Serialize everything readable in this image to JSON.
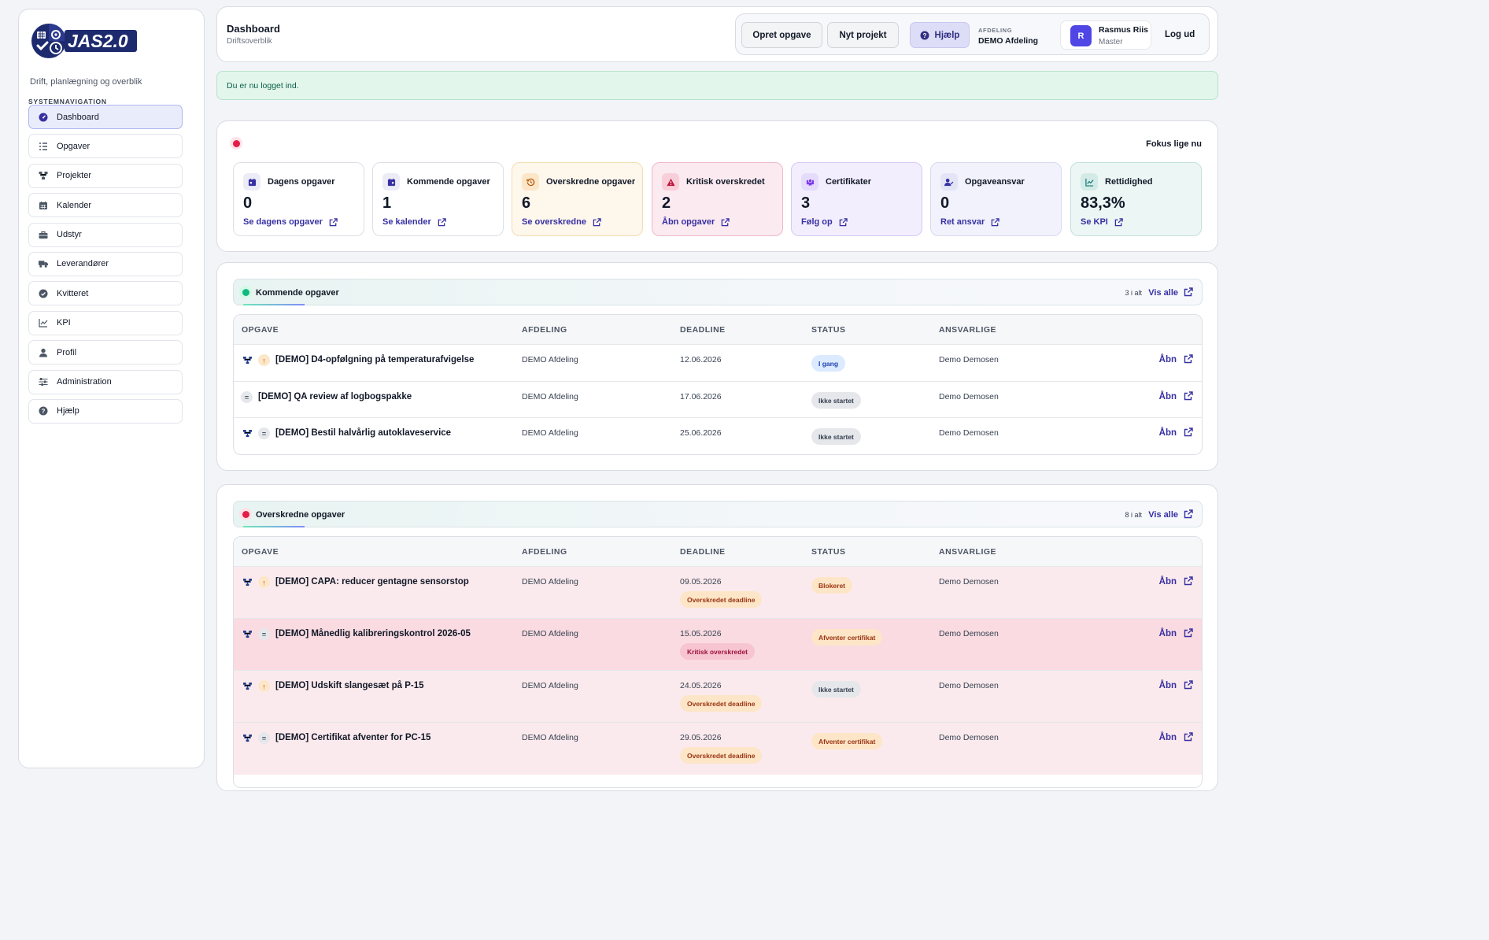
{
  "sidebar": {
    "logo_text": "JAS2.0",
    "tagline": "Drift, planlægning og overblik",
    "nav_heading": "SYSTEMNAVIGATION",
    "items": [
      {
        "label": "Dashboard",
        "icon": "gauge-icon",
        "active": true
      },
      {
        "label": "Opgaver",
        "icon": "list-icon"
      },
      {
        "label": "Projekter",
        "icon": "project-tree-icon"
      },
      {
        "label": "Kalender",
        "icon": "calendar-icon"
      },
      {
        "label": "Udstyr",
        "icon": "toolbox-icon"
      },
      {
        "label": "Leverandører",
        "icon": "truck-icon"
      },
      {
        "label": "Kvitteret",
        "icon": "check-circle-icon"
      },
      {
        "label": "KPI",
        "icon": "line-chart-icon"
      },
      {
        "label": "Profil",
        "icon": "user-icon"
      },
      {
        "label": "Administration",
        "icon": "sliders-icon"
      },
      {
        "label": "Hjælp",
        "icon": "question-circle-icon"
      }
    ]
  },
  "header": {
    "title": "Dashboard",
    "subtitle": "Driftsoverblik",
    "create_task": "Opret opgave",
    "new_project": "Nyt projekt",
    "help": "Hjælp",
    "department_label": "AFDELING",
    "department": "DEMO Afdeling",
    "user_initial": "R",
    "user_name": "Rasmus Riis",
    "user_role": "Master",
    "logout": "Log ud"
  },
  "alert": "Du er nu logget ind.",
  "focus": {
    "title": "Fokus lige nu",
    "cards": [
      {
        "label": "Dagens opgaver",
        "value": "0",
        "link": "Se dagens opgaver",
        "icon": "calendar-day-icon"
      },
      {
        "label": "Kommende opgaver",
        "value": "1",
        "link": "Se kalender",
        "icon": "calendar-icon"
      },
      {
        "label": "Overskredne opgaver",
        "value": "6",
        "link": "Se overskredne",
        "icon": "history-icon"
      },
      {
        "label": "Kritisk overskredet",
        "value": "2",
        "link": "Åbn opgaver",
        "icon": "warning-triangle-icon"
      },
      {
        "label": "Certifikater",
        "value": "3",
        "link": "Følg op",
        "icon": "certificate-icon"
      },
      {
        "label": "Opgaveansvar",
        "value": "0",
        "link": "Ret ansvar",
        "icon": "user-edit-icon"
      },
      {
        "label": "Rettidighed",
        "value": "83,3%",
        "link": "Se KPI",
        "icon": "line-chart-icon"
      }
    ]
  },
  "columns": [
    "OPGAVE",
    "AFDELING",
    "DEADLINE",
    "STATUS",
    "ANSVARLIGE"
  ],
  "upcoming": {
    "title": "Kommende opgaver",
    "count": "3 i alt",
    "view_all": "Vis alle",
    "rows": [
      {
        "project_icon": true,
        "priority": "up",
        "name": "[DEMO] D4-opfølgning på temperaturafvigelse",
        "department": "DEMO Afdeling",
        "deadline": "12.06.2026",
        "status": "I gang",
        "status_kind": "igang",
        "responsible": "Demo Demosen",
        "open": "Åbn"
      },
      {
        "project_icon": false,
        "priority": "eq",
        "name": "[DEMO] QA review af logbogspakke",
        "department": "DEMO Afdeling",
        "deadline": "17.06.2026",
        "status": "Ikke startet",
        "status_kind": "ikke",
        "responsible": "Demo Demosen",
        "open": "Åbn"
      },
      {
        "project_icon": true,
        "priority": "eq",
        "name": "[DEMO] Bestil halvårlig autoklaveservice",
        "department": "DEMO Afdeling",
        "deadline": "25.06.2026",
        "status": "Ikke startet",
        "status_kind": "ikke",
        "responsible": "Demo Demosen",
        "open": "Åbn"
      }
    ]
  },
  "overdue": {
    "title": "Overskredne opgaver",
    "count": "8 i alt",
    "view_all": "Vis alle",
    "rows": [
      {
        "project_icon": true,
        "priority": "up",
        "name": "[DEMO] CAPA: reducer gentagne sensorstop",
        "department": "DEMO Afdeling",
        "deadline": "09.05.2026",
        "flag": "Overskredet deadline",
        "flag_kind": "od",
        "status": "Blokeret",
        "status_kind": "blok",
        "responsible": "Demo Demosen",
        "open": "Åbn",
        "row_kind": "od"
      },
      {
        "project_icon": true,
        "priority": "eq",
        "name": "[DEMO] Månedlig kalibreringskontrol 2026-05",
        "department": "DEMO Afdeling",
        "deadline": "15.05.2026",
        "flag": "Kritisk overskredet",
        "flag_kind": "kr",
        "status": "Afventer certifikat",
        "status_kind": "afv",
        "responsible": "Demo Demosen",
        "open": "Åbn",
        "row_kind": "crit"
      },
      {
        "project_icon": true,
        "priority": "up",
        "name": "[DEMO] Udskift slangesæt på P-15",
        "department": "DEMO Afdeling",
        "deadline": "24.05.2026",
        "flag": "Overskredet deadline",
        "flag_kind": "od",
        "status": "Ikke startet",
        "status_kind": "ikke",
        "responsible": "Demo Demosen",
        "open": "Åbn",
        "row_kind": "od"
      },
      {
        "project_icon": true,
        "priority": "eq",
        "name": "[DEMO] Certifikat afventer for PC-15",
        "department": "DEMO Afdeling",
        "deadline": "29.05.2026",
        "flag": "Overskredet deadline",
        "flag_kind": "od",
        "status": "Afventer certifikat",
        "status_kind": "afv",
        "responsible": "Demo Demosen",
        "open": "Åbn",
        "row_kind": "od"
      }
    ]
  }
}
